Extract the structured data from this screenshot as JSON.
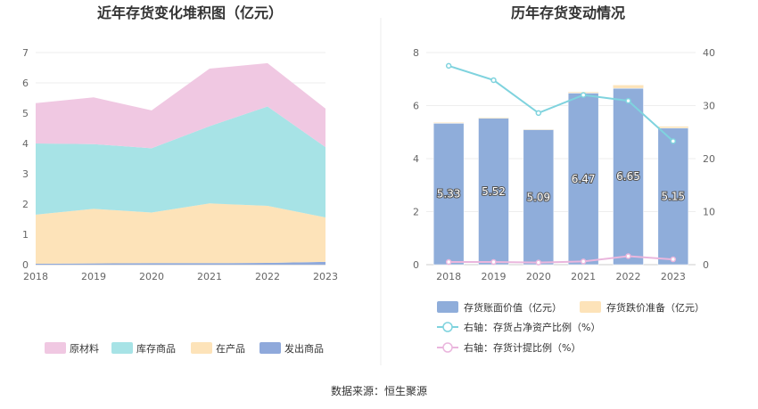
{
  "footer": {
    "source": "数据来源：恒生聚源"
  },
  "colors": {
    "raw": "#f0c8e2",
    "stock": "#a7e3e6",
    "wip": "#fde3b9",
    "shipped": "#8fa9db",
    "book": "#8fadda",
    "reserve": "#fde3b9",
    "ratio_line": "#7fd3de",
    "provision_line": "#eab6dd"
  },
  "chart_data": [
    {
      "type": "area",
      "title": "近年存货变化堆积图（亿元）",
      "categories": [
        "2018",
        "2019",
        "2020",
        "2021",
        "2022",
        "2023"
      ],
      "ylim": [
        0,
        7
      ],
      "yticks": [
        "0",
        "1",
        "2",
        "3",
        "4",
        "5",
        "6",
        "7"
      ],
      "stacked": true,
      "series": [
        {
          "name": "发出商品",
          "values": [
            0.03,
            0.04,
            0.05,
            0.05,
            0.06,
            0.09
          ]
        },
        {
          "name": "在产品",
          "values": [
            1.62,
            1.8,
            1.67,
            1.97,
            1.88,
            1.47
          ]
        },
        {
          "name": "库存商品",
          "values": [
            2.35,
            2.14,
            2.12,
            2.55,
            3.28,
            2.32
          ]
        },
        {
          "name": "原材料",
          "values": [
            1.33,
            1.54,
            1.25,
            1.9,
            1.43,
            1.27
          ]
        }
      ],
      "legend_placement": "bottom",
      "legend": [
        "原材料",
        "库存商品",
        "在产品",
        "发出商品"
      ]
    },
    {
      "type": "bar",
      "title": "历年存货变动情况",
      "categories": [
        "2018",
        "2019",
        "2020",
        "2021",
        "2022",
        "2023"
      ],
      "ylim": [
        0,
        8
      ],
      "yticks": [
        "0",
        "2",
        "4",
        "6",
        "8"
      ],
      "y2lim": [
        0,
        40
      ],
      "y2ticks": [
        "0",
        "10",
        "20",
        "30",
        "40"
      ],
      "series": [
        {
          "name": "存货账面价值（亿元）",
          "kind": "bar",
          "axis": "left",
          "values": [
            5.33,
            5.52,
            5.09,
            6.47,
            6.65,
            5.15
          ],
          "labels": [
            "5.33",
            "5.52",
            "5.09",
            "6.47",
            "6.65",
            "5.15"
          ]
        },
        {
          "name": "存货跌价准备（亿元）",
          "kind": "bar-stacked",
          "axis": "left",
          "values": [
            0.03,
            0.03,
            0.02,
            0.04,
            0.12,
            0.06
          ]
        },
        {
          "name": "右轴：存货占净资产比例（%）",
          "kind": "line",
          "axis": "right",
          "values": [
            37.5,
            34.8,
            28.6,
            32.0,
            30.9,
            23.3
          ]
        },
        {
          "name": "右轴：存货计提比例（%）",
          "kind": "line",
          "axis": "right",
          "values": [
            0.5,
            0.5,
            0.4,
            0.6,
            1.6,
            1.0
          ]
        }
      ],
      "legend_placement": "bottom"
    }
  ]
}
